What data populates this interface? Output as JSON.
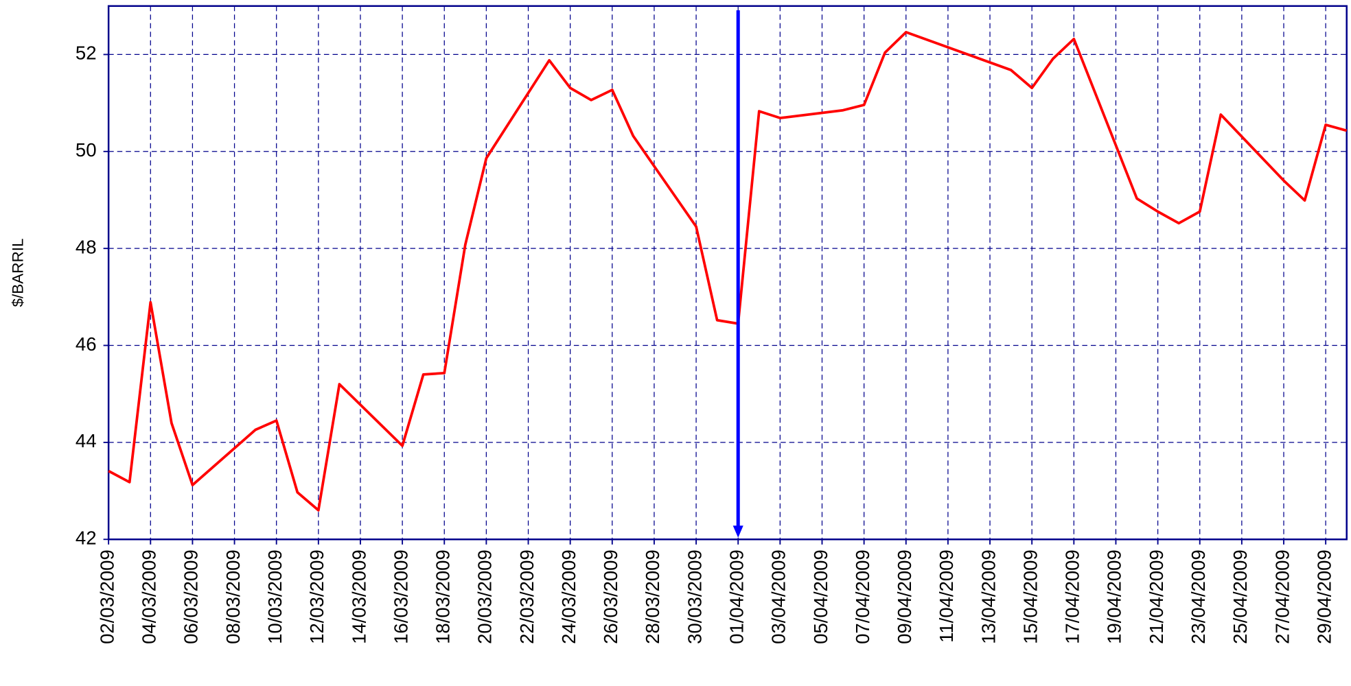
{
  "chart_data": {
    "type": "line",
    "y_label": "$/BARRIL",
    "x": [
      "02/03/2009",
      "03/03/2009",
      "04/03/2009",
      "05/03/2009",
      "06/03/2009",
      "09/03/2009",
      "10/03/2009",
      "11/03/2009",
      "12/03/2009",
      "13/03/2009",
      "16/03/2009",
      "17/03/2009",
      "18/03/2009",
      "19/03/2009",
      "20/03/2009",
      "23/03/2009",
      "24/03/2009",
      "25/03/2009",
      "26/03/2009",
      "27/03/2009",
      "30/03/2009",
      "31/03/2009",
      "01/04/2009",
      "02/04/2009",
      "03/04/2009",
      "06/04/2009",
      "07/04/2009",
      "08/04/2009",
      "09/04/2009",
      "14/04/2009",
      "15/04/2009",
      "16/04/2009",
      "17/04/2009",
      "20/04/2009",
      "21/04/2009",
      "22/04/2009",
      "23/04/2009",
      "24/04/2009",
      "27/04/2009",
      "28/04/2009",
      "29/04/2009",
      "30/04/2009"
    ],
    "series": [
      {
        "color": "#ff0000",
        "values": [
          43.41,
          43.18,
          46.89,
          44.4,
          43.12,
          44.26,
          44.45,
          42.97,
          42.6,
          45.2,
          43.93,
          45.4,
          45.43,
          48.08,
          49.86,
          51.88,
          51.31,
          51.06,
          51.27,
          50.32,
          48.45,
          46.52,
          46.45,
          50.83,
          50.69,
          50.85,
          50.96,
          52.04,
          52.46,
          51.68,
          51.31,
          51.91,
          52.32,
          49.03,
          48.76,
          48.52,
          48.76,
          50.76,
          49.4,
          48.99,
          50.55,
          50.43
        ]
      }
    ],
    "xlim": [
      "02/03/2009",
      "30/04/2009"
    ],
    "xticks": [
      "02/03/2009",
      "04/03/2009",
      "06/03/2009",
      "08/03/2009",
      "10/03/2009",
      "12/03/2009",
      "14/03/2009",
      "16/03/2009",
      "18/03/2009",
      "20/03/2009",
      "22/03/2009",
      "24/03/2009",
      "26/03/2009",
      "28/03/2009",
      "30/03/2009",
      "01/04/2009",
      "03/04/2009",
      "05/04/2009",
      "07/04/2009",
      "09/04/2009",
      "11/04/2009",
      "13/04/2009",
      "15/04/2009",
      "17/04/2009",
      "19/04/2009",
      "21/04/2009",
      "23/04/2009",
      "25/04/2009",
      "27/04/2009",
      "29/04/2009"
    ],
    "ylim": [
      42,
      53
    ],
    "yticks": [
      42,
      44,
      46,
      48,
      50,
      52
    ],
    "grid": true,
    "grid_color": "#00008b",
    "axis_color": "#00008b",
    "vline": {
      "x": "01/04/2009",
      "color": "#0000ff"
    }
  }
}
